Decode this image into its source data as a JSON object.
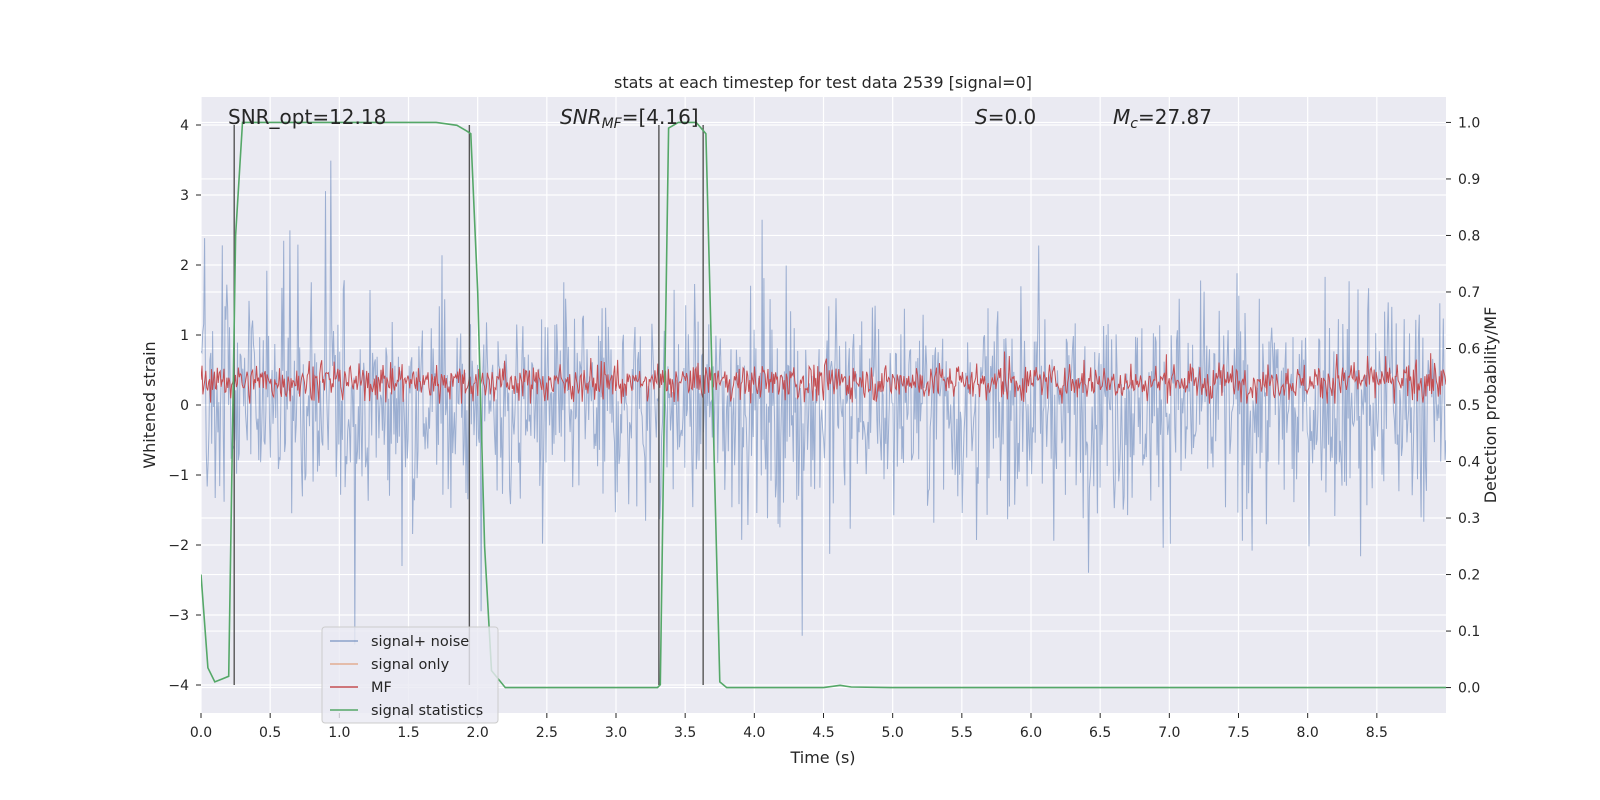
{
  "chart_data": {
    "type": "line",
    "title": "stats at each timestep for test data 2539 [signal=0]",
    "xlabel": "Time (s)",
    "ylabel": "Whitened strain",
    "y2label": "Detection probability/MF",
    "xlim": [
      0,
      9.0
    ],
    "ylim": [
      -4.4,
      4.4
    ],
    "y2lim": [
      -0.045,
      1.045
    ],
    "xticks": [
      0.0,
      0.5,
      1.0,
      1.5,
      2.0,
      2.5,
      3.0,
      3.5,
      4.0,
      4.5,
      5.0,
      5.5,
      6.0,
      6.5,
      7.0,
      7.5,
      8.0,
      8.5
    ],
    "yticks": [
      -4,
      -3,
      -2,
      -1,
      0,
      1,
      2,
      3,
      4
    ],
    "y2ticks": [
      0.0,
      0.1,
      0.2,
      0.3,
      0.4,
      0.5,
      0.6,
      0.7,
      0.8,
      0.9,
      1.0
    ],
    "legend_position": "bottom-left",
    "annotations": [
      "SNR_opt=12.18",
      "SNR_MF=[4.16]",
      "S=0.0",
      "M_c=27.87"
    ],
    "series": [
      {
        "name": "signal+ noise",
        "axis": "left",
        "color": "#4c72b0",
        "style": "dense noise band, mostly within ±1.6, spikes to ±3.9"
      },
      {
        "name": "signal only",
        "axis": "left",
        "color": "#dd8452",
        "values": []
      },
      {
        "name": "MF",
        "axis": "left",
        "color": "#c44e52",
        "style": "dense band between 0 and about 0.7, peaks near 1.0"
      },
      {
        "name": "signal statistics",
        "axis": "right",
        "color": "#55a868",
        "x": [
          0.0,
          0.05,
          0.1,
          0.15,
          0.2,
          0.25,
          0.3,
          0.45,
          1.7,
          1.85,
          1.92,
          1.95,
          2.0,
          2.05,
          2.1,
          2.2,
          3.3,
          3.32,
          3.35,
          3.38,
          3.45,
          3.58,
          3.65,
          3.7,
          3.75,
          3.8,
          4.5,
          4.62,
          4.7,
          5.0,
          9.0
        ],
        "values": [
          0.2,
          0.035,
          0.01,
          0.015,
          0.02,
          0.8,
          1.0,
          1.0,
          1.0,
          0.995,
          0.985,
          0.98,
          0.7,
          0.25,
          0.03,
          0.0,
          0.0,
          0.005,
          0.5,
          0.99,
          1.0,
          1.0,
          0.98,
          0.5,
          0.01,
          0.0,
          0.0,
          0.004,
          0.001,
          0.0,
          0.0
        ]
      }
    ],
    "vlines": [
      0.24,
      1.94,
      3.31,
      3.63
    ]
  },
  "colors": {
    "background": "#eaeaf2",
    "grid": "#ffffff",
    "noise": "#4c72b0",
    "signal_only": "#dd8452",
    "mf": "#c44e52",
    "statistics": "#55a868",
    "vline": "#555555"
  }
}
